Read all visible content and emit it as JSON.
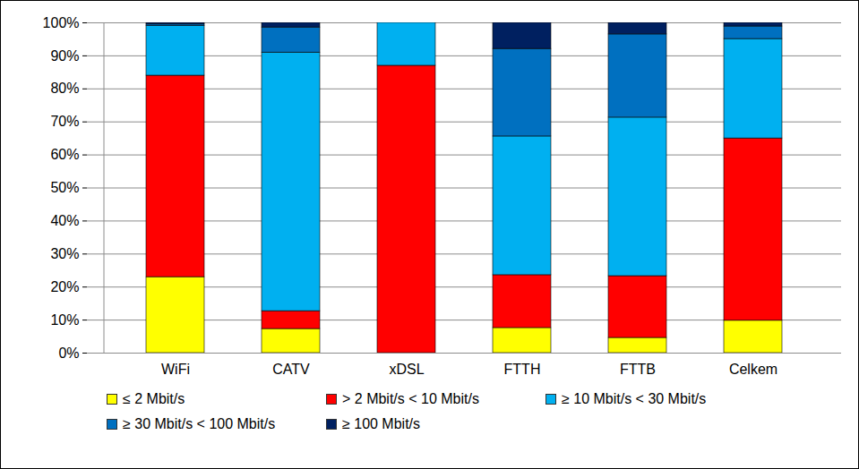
{
  "chart_data": {
    "type": "bar",
    "stacked": true,
    "grid": true,
    "legend": "bottom",
    "data_labels": false,
    "categories": [
      "WiFi",
      "CATV",
      "xDSL",
      "FTTH",
      "FTTB",
      "Celkem"
    ],
    "series": [
      {
        "name": "≤  2 Mbit/s",
        "color": "#ffff00",
        "values": [
          23,
          7.3,
          0,
          7.6,
          4.6,
          9.8
        ]
      },
      {
        "name": "> 2 Mbit/s < 10 Mbit/s",
        "color": "#ff0000",
        "values": [
          61,
          5.4,
          87,
          16,
          18.7,
          55.2
        ]
      },
      {
        "name": "≥ 10 Mbit/s < 30 Mbit/s",
        "color": "#00b0f0",
        "values": [
          15,
          78.3,
          13,
          42,
          48,
          30.1
        ]
      },
      {
        "name": "≥ 30 Mbit/s < 100 Mbit/s",
        "color": "#0070c0",
        "values": [
          0.5,
          7.6,
          0,
          26.5,
          25.2,
          3.8
        ]
      },
      {
        "name": "≥ 100 Mbit/s",
        "color": "#002060",
        "values": [
          0.5,
          1.4,
          0,
          7.9,
          3.5,
          1.1
        ]
      }
    ],
    "ylim": [
      0,
      100
    ],
    "yticks": [
      {
        "value": 0,
        "label": "0%"
      },
      {
        "value": 10,
        "label": "10%"
      },
      {
        "value": 20,
        "label": "20%"
      },
      {
        "value": 30,
        "label": "30%"
      },
      {
        "value": 40,
        "label": "40%"
      },
      {
        "value": 50,
        "label": "50%"
      },
      {
        "value": 60,
        "label": "60%"
      },
      {
        "value": 70,
        "label": "70%"
      },
      {
        "value": 80,
        "label": "80%"
      },
      {
        "value": 90,
        "label": "90%"
      },
      {
        "value": 100,
        "label": "100%"
      }
    ]
  }
}
